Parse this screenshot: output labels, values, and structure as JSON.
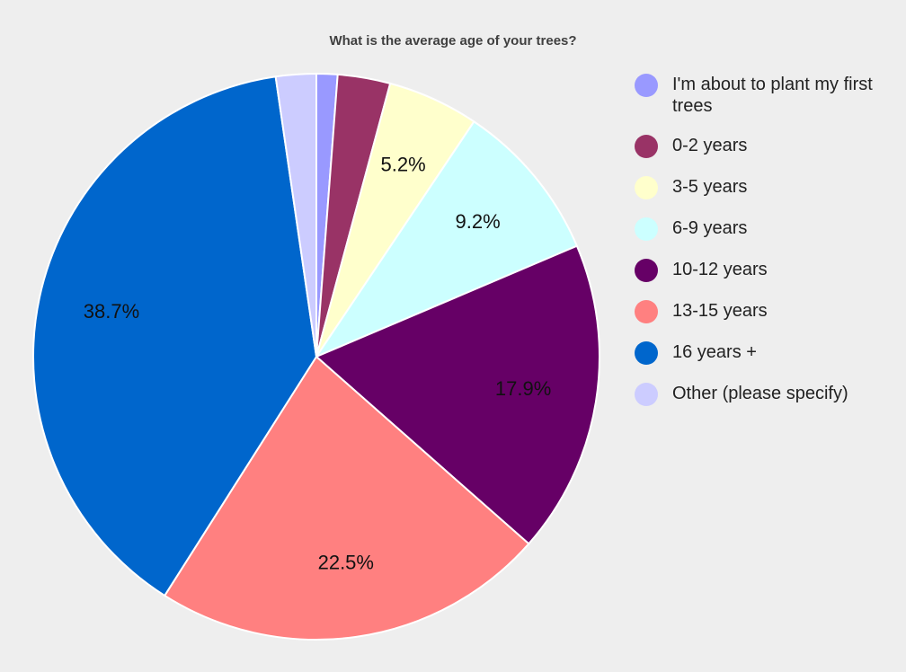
{
  "chart_data": {
    "type": "pie",
    "title": "What is the average age of your trees?",
    "slices": [
      {
        "label": "I'm about to plant my first trees",
        "value": 1.2,
        "color": "#9999ff",
        "display_label": ""
      },
      {
        "label": "0-2 years",
        "value": 3.0,
        "color": "#993366",
        "display_label": ""
      },
      {
        "label": "3-5 years",
        "value": 5.2,
        "color": "#ffffcc",
        "display_label": "5.2%"
      },
      {
        "label": "6-9 years",
        "value": 9.2,
        "color": "#ccffff",
        "display_label": "9.2%"
      },
      {
        "label": "10-12 years",
        "value": 17.9,
        "color": "#660066",
        "display_label": "17.9%"
      },
      {
        "label": "13-15 years",
        "value": 22.5,
        "color": "#ff8080",
        "display_label": "22.5%"
      },
      {
        "label": "16 years +",
        "value": 38.7,
        "color": "#0066cc",
        "display_label": "38.7%"
      },
      {
        "label": "Other (please specify)",
        "value": 2.3,
        "color": "#ccccff",
        "display_label": ""
      }
    ],
    "legend_position": "right"
  }
}
